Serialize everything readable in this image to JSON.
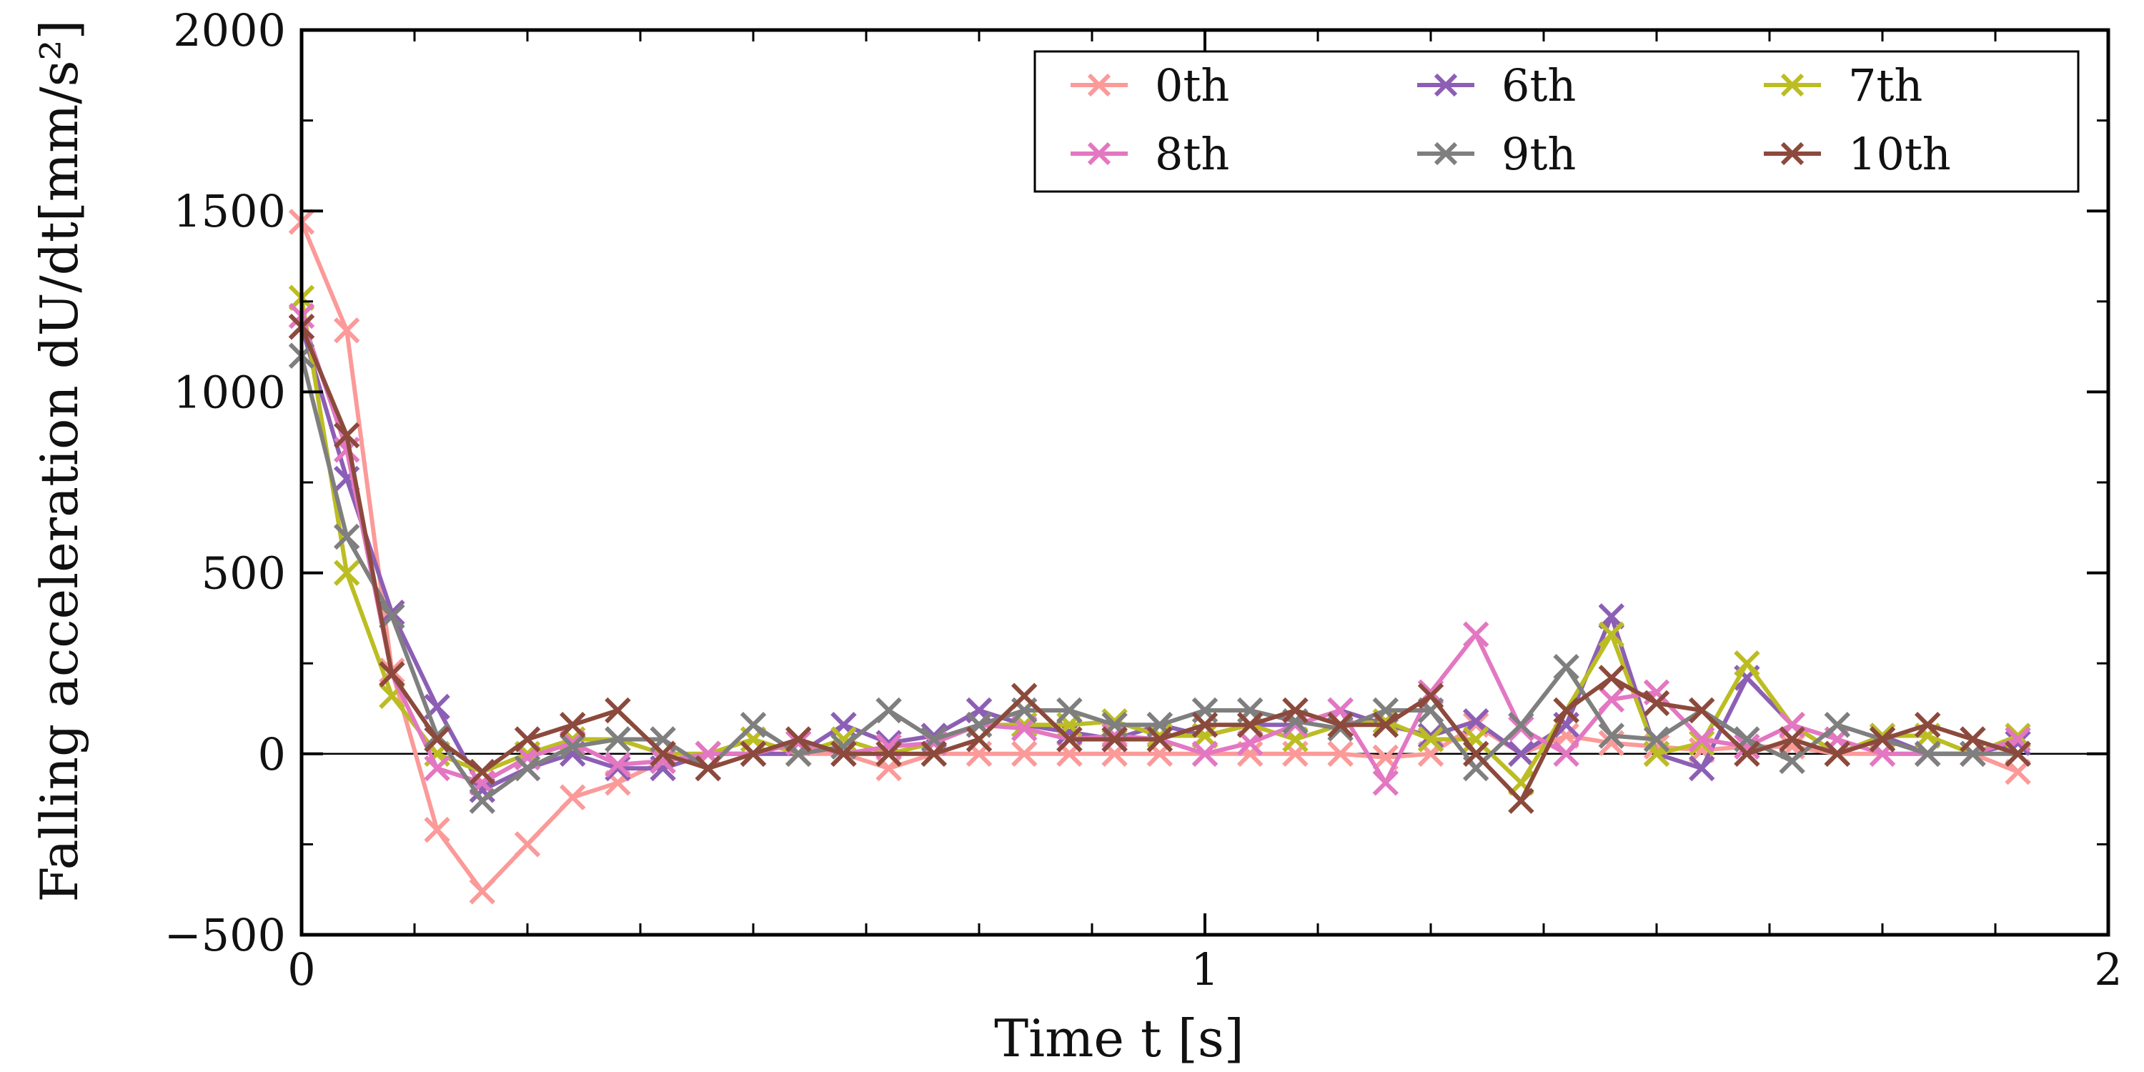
{
  "chart_data": {
    "type": "line",
    "title": "",
    "xlabel": "Time t [s]",
    "ylabel": "Falling acceleration dU/dt[mm/s²]",
    "xlim": [
      0,
      2
    ],
    "ylim": [
      -500,
      2000
    ],
    "xticks": [
      0,
      1,
      2
    ],
    "yticks": [
      -500,
      0,
      500,
      1000,
      1500,
      2000
    ],
    "x_tick_labels": [
      "0",
      "1",
      "2"
    ],
    "y_tick_labels": [
      "−500",
      "0",
      "500",
      "1000",
      "1500",
      "2000"
    ],
    "grid": false,
    "zero_line": true,
    "legend_position": "top-right",
    "marker": "x",
    "x": [
      0,
      0.05,
      0.1,
      0.15,
      0.2,
      0.25,
      0.3,
      0.35,
      0.4,
      0.45,
      0.5,
      0.55,
      0.6,
      0.65,
      0.7,
      0.75,
      0.8,
      0.85,
      0.9,
      0.95,
      1.0,
      1.05,
      1.1,
      1.15,
      1.2,
      1.25,
      1.3,
      1.35,
      1.4,
      1.45,
      1.5,
      1.55,
      1.6,
      1.65,
      1.7,
      1.75,
      1.8,
      1.85,
      1.9
    ],
    "series": [
      {
        "name": "0th",
        "color": "#fb9a99",
        "values": [
          1470,
          1170,
          230,
          -210,
          -380,
          -250,
          -120,
          -80,
          -20,
          0,
          0,
          0,
          0,
          -40,
          0,
          0,
          0,
          0,
          0,
          0,
          0,
          0,
          0,
          0,
          -10,
          0,
          80,
          0,
          50,
          30,
          20,
          10,
          20,
          20,
          0,
          0,
          0,
          0,
          -50
        ]
      },
      {
        "name": "6th",
        "color": "#8c5fb5",
        "values": [
          1180,
          760,
          390,
          130,
          -100,
          -40,
          0,
          -40,
          -40,
          0,
          0,
          0,
          80,
          30,
          50,
          120,
          80,
          60,
          40,
          80,
          50,
          80,
          80,
          120,
          80,
          50,
          90,
          0,
          80,
          380,
          0,
          -40,
          210,
          80,
          0,
          50,
          0,
          0,
          30
        ]
      },
      {
        "name": "7th",
        "color": "#bcbd22",
        "values": [
          1260,
          500,
          160,
          0,
          -50,
          0,
          40,
          40,
          0,
          0,
          40,
          0,
          40,
          0,
          30,
          80,
          80,
          80,
          90,
          50,
          50,
          80,
          40,
          80,
          90,
          40,
          40,
          -80,
          120,
          330,
          0,
          30,
          250,
          80,
          0,
          50,
          50,
          0,
          50
        ]
      },
      {
        "name": "8th",
        "color": "#e377c2",
        "values": [
          1210,
          840,
          220,
          -40,
          -80,
          -10,
          30,
          -30,
          -20,
          0,
          0,
          30,
          0,
          20,
          30,
          80,
          70,
          40,
          50,
          40,
          0,
          30,
          80,
          120,
          -80,
          170,
          330,
          70,
          0,
          150,
          170,
          40,
          20,
          80,
          40,
          0,
          0,
          0,
          40
        ]
      },
      {
        "name": "9th",
        "color": "#7f7f7f",
        "values": [
          1100,
          600,
          380,
          50,
          -130,
          -40,
          20,
          40,
          40,
          -40,
          80,
          0,
          20,
          120,
          40,
          80,
          120,
          120,
          80,
          80,
          120,
          120,
          90,
          70,
          120,
          120,
          -40,
          80,
          240,
          50,
          40,
          120,
          40,
          -20,
          80,
          40,
          0,
          0,
          0
        ]
      },
      {
        "name": "10th",
        "color": "#8c4a3c",
        "values": [
          1180,
          880,
          220,
          40,
          -50,
          40,
          80,
          120,
          0,
          -40,
          0,
          40,
          0,
          0,
          0,
          40,
          160,
          40,
          40,
          40,
          80,
          80,
          120,
          80,
          80,
          160,
          0,
          -130,
          120,
          210,
          140,
          120,
          0,
          40,
          0,
          40,
          80,
          40,
          0
        ]
      }
    ]
  }
}
